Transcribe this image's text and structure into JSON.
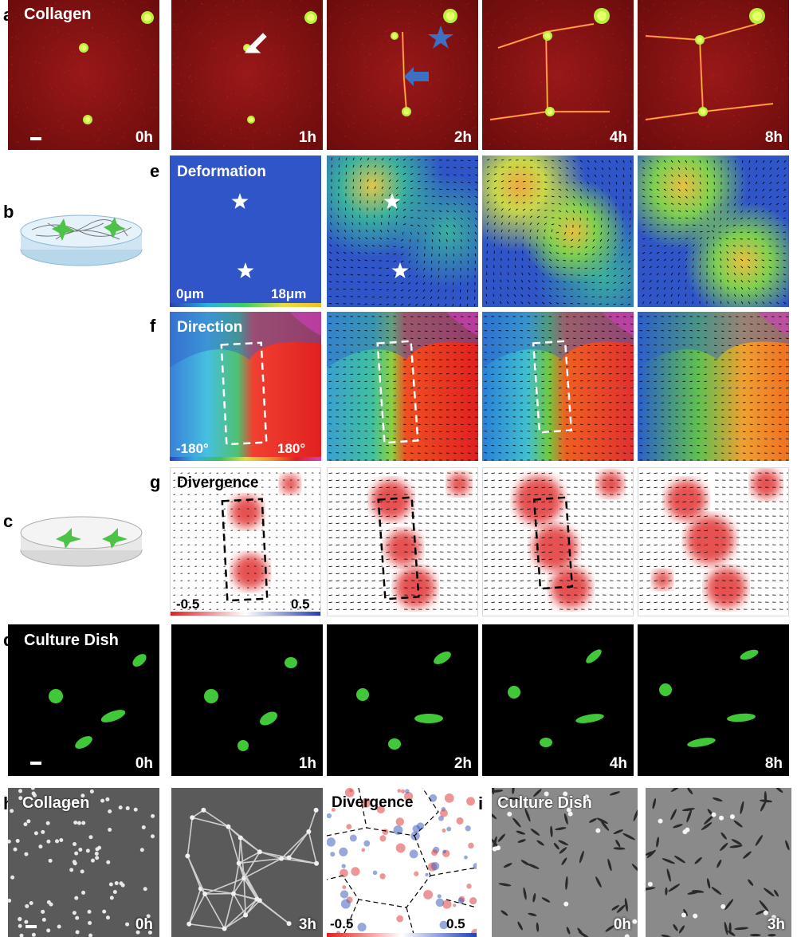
{
  "panel_letters": {
    "a": "a",
    "b": "b",
    "c": "c",
    "d": "d",
    "e": "e",
    "f": "f",
    "g": "g",
    "h": "h",
    "i": "i"
  },
  "row_a": {
    "label": "Collagen",
    "times": [
      "0h",
      "1h",
      "2h",
      "4h",
      "8h"
    ]
  },
  "row_e": {
    "label": "Deformation",
    "cbar_min": "0μm",
    "cbar_max": "18μm"
  },
  "row_f": {
    "label": "Direction",
    "cbar_min": "-180°",
    "cbar_max": "180°"
  },
  "row_g": {
    "label": "Divergence",
    "cbar_min": "-0.5",
    "cbar_max": "0.5"
  },
  "row_d": {
    "label": "Culture Dish",
    "times": [
      "0h",
      "1h",
      "2h",
      "4h",
      "8h"
    ]
  },
  "row_h": {
    "label": "Collagen",
    "times": [
      "0h",
      "3h"
    ],
    "div_label": "Divergence",
    "cbar_min": "-0.5",
    "cbar_max": "0.5"
  },
  "row_i": {
    "label": "Culture Dish",
    "times": [
      "0h",
      "3h"
    ]
  },
  "colors": {
    "collagen_red": "#8a1414",
    "cell_green": "#3fd13a",
    "arrow_blue": "#3d6fc4",
    "div_red": "#e03030",
    "div_blue": "#3050b0"
  },
  "icons": {
    "white_arrow": "arrow-icon",
    "blue_star": "star-icon",
    "blue_arrow": "arrow-icon",
    "white_star": "star-icon"
  }
}
